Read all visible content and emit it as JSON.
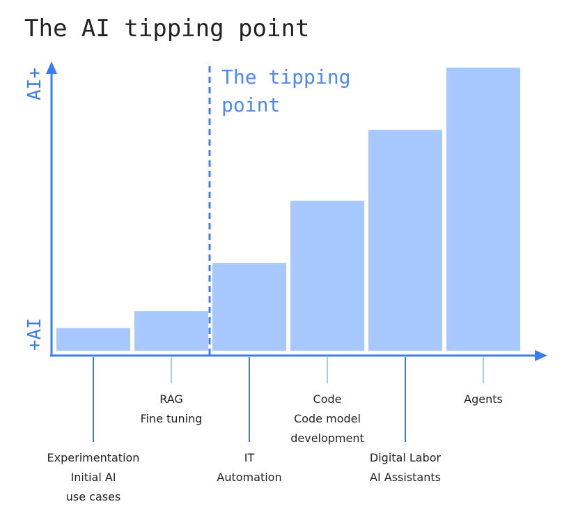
{
  "chart_data": {
    "type": "bar",
    "title": "The AI tipping point",
    "annotation": [
      "The tipping",
      "point"
    ],
    "categories": [
      [
        "Experimentation",
        "Initial AI",
        "use cases"
      ],
      [
        "RAG",
        "Fine tuning"
      ],
      [
        "IT",
        "Automation"
      ],
      [
        "Code",
        "Code model",
        "development"
      ],
      [
        "Digital Labor",
        "AI Assistants"
      ],
      [
        "Agents"
      ]
    ],
    "values": [
      8,
      14,
      31,
      53,
      78,
      100
    ],
    "color": "#a6c8ff",
    "axis_color": "#3b7cf4",
    "ylim": [
      0,
      100
    ],
    "yticks": [
      {
        "value": 0,
        "label": "+AI"
      },
      {
        "value": 100,
        "label": "AI+"
      }
    ]
  }
}
